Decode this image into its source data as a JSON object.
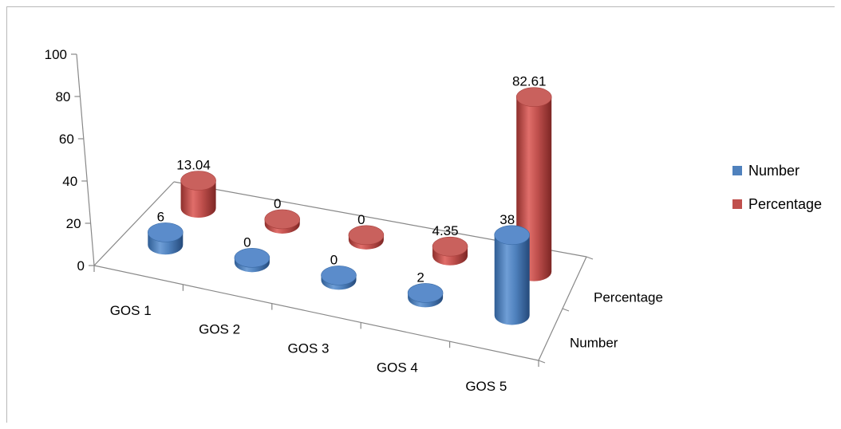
{
  "chart_data": {
    "type": "bar",
    "style": "3d-cylinder",
    "categories": [
      "GOS 1",
      "GOS 2",
      "GOS 3",
      "GOS 4",
      "GOS 5"
    ],
    "series": [
      {
        "name": "Number",
        "values": [
          6,
          0,
          0,
          2,
          38
        ],
        "labels": [
          "6",
          "0",
          "0",
          "2",
          "38"
        ],
        "color": "#4f81bd"
      },
      {
        "name": "Percentage",
        "values": [
          13.04,
          0,
          0,
          4.35,
          82.61
        ],
        "labels": [
          "13.04",
          "0",
          "0",
          "4.35",
          "82.61"
        ],
        "color": "#c0504d"
      }
    ],
    "depth_labels": [
      "Number",
      "Percentage"
    ],
    "y_ticks": [
      "0",
      "20",
      "40",
      "60",
      "80",
      "100"
    ],
    "ylim": [
      0,
      100
    ],
    "legend_position": "right"
  }
}
